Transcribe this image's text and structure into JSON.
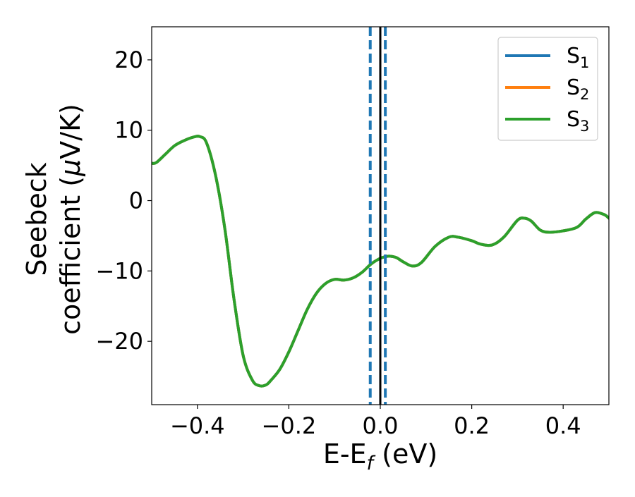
{
  "chart_data": {
    "type": "line",
    "xlabel": "E-E",
    "xlabel_sub": "f",
    "xlabel_unit": " (eV)",
    "ylabel_line1": "Seebeck",
    "ylabel_line2": "coefficient  (",
    "ylabel_mu": "μ",
    "ylabel_unit": "V/K)",
    "xlim": [
      -0.5,
      0.5
    ],
    "ylim": [
      -29,
      24.7
    ],
    "xticks": [
      -0.4,
      -0.2,
      0.0,
      0.2,
      0.4
    ],
    "xtick_labels": [
      "−0.4",
      "−0.2",
      "0.0",
      "0.2",
      "0.4"
    ],
    "yticks": [
      -20,
      -10,
      0,
      10,
      20
    ],
    "ytick_labels": [
      "−20",
      "−10",
      "0",
      "10",
      "20"
    ],
    "grid": false,
    "legend_position": "top-right",
    "colors": {
      "S1": "#1f77b4",
      "S2": "#ff7f0e",
      "S3": "#2ca02c",
      "fermi": "#000000"
    },
    "series": [
      {
        "name": "S",
        "sub": "1",
        "key": "S1",
        "x": [
          -0.5,
          -0.49,
          -0.47,
          -0.45,
          -0.43,
          -0.41,
          -0.395,
          -0.38,
          -0.36,
          -0.34,
          -0.32,
          -0.3,
          -0.28,
          -0.265,
          -0.25,
          -0.24,
          -0.22,
          -0.2,
          -0.18,
          -0.16,
          -0.14,
          -0.12,
          -0.1,
          -0.08,
          -0.06,
          -0.04,
          -0.02,
          0.0,
          0.01,
          0.02,
          0.035,
          0.05,
          0.07,
          0.09,
          0.12,
          0.15,
          0.17,
          0.2,
          0.22,
          0.245,
          0.27,
          0.3,
          0.315,
          0.33,
          0.35,
          0.37,
          0.4,
          0.43,
          0.45,
          0.47,
          0.49,
          0.5
        ],
        "y": [
          5.3,
          5.4,
          6.6,
          7.8,
          8.5,
          9.0,
          9.1,
          8.2,
          3.5,
          -4.0,
          -14.0,
          -22.0,
          -25.5,
          -26.3,
          -26.2,
          -25.6,
          -24.0,
          -21.5,
          -18.5,
          -15.5,
          -13.2,
          -11.8,
          -11.2,
          -11.3,
          -11.0,
          -10.2,
          -9.0,
          -8.2,
          -8.0,
          -7.9,
          -8.1,
          -8.7,
          -9.3,
          -8.8,
          -6.5,
          -5.2,
          -5.2,
          -5.7,
          -6.2,
          -6.3,
          -5.2,
          -2.8,
          -2.5,
          -2.9,
          -4.2,
          -4.5,
          -4.3,
          -3.8,
          -2.6,
          -1.7,
          -2.0,
          -2.5
        ]
      },
      {
        "name": "S",
        "sub": "2",
        "key": "S2",
        "x": [
          -0.5,
          -0.49,
          -0.47,
          -0.45,
          -0.43,
          -0.41,
          -0.395,
          -0.38,
          -0.36,
          -0.34,
          -0.32,
          -0.3,
          -0.28,
          -0.265,
          -0.25,
          -0.24,
          -0.22,
          -0.2,
          -0.18,
          -0.16,
          -0.14,
          -0.12,
          -0.1,
          -0.08,
          -0.06,
          -0.04,
          -0.02,
          0.0,
          0.01,
          0.02,
          0.035,
          0.05,
          0.07,
          0.09,
          0.12,
          0.15,
          0.17,
          0.2,
          0.22,
          0.245,
          0.27,
          0.3,
          0.315,
          0.33,
          0.35,
          0.37,
          0.4,
          0.43,
          0.45,
          0.47,
          0.49,
          0.5
        ],
        "y": [
          5.3,
          5.4,
          6.6,
          7.8,
          8.5,
          9.0,
          9.1,
          8.2,
          3.5,
          -4.0,
          -14.0,
          -22.0,
          -25.5,
          -26.3,
          -26.2,
          -25.6,
          -24.0,
          -21.5,
          -18.5,
          -15.5,
          -13.2,
          -11.8,
          -11.2,
          -11.3,
          -11.0,
          -10.2,
          -9.0,
          -8.2,
          -8.0,
          -7.9,
          -8.1,
          -8.7,
          -9.3,
          -8.8,
          -6.5,
          -5.2,
          -5.2,
          -5.7,
          -6.2,
          -6.3,
          -5.2,
          -2.8,
          -2.5,
          -2.9,
          -4.2,
          -4.5,
          -4.3,
          -3.8,
          -2.6,
          -1.7,
          -2.0,
          -2.5
        ]
      },
      {
        "name": "S",
        "sub": "3",
        "key": "S3",
        "x": [
          -0.5,
          -0.49,
          -0.47,
          -0.45,
          -0.43,
          -0.41,
          -0.395,
          -0.38,
          -0.36,
          -0.34,
          -0.32,
          -0.3,
          -0.28,
          -0.265,
          -0.25,
          -0.24,
          -0.22,
          -0.2,
          -0.18,
          -0.16,
          -0.14,
          -0.12,
          -0.1,
          -0.08,
          -0.06,
          -0.04,
          -0.02,
          0.0,
          0.01,
          0.02,
          0.035,
          0.05,
          0.07,
          0.09,
          0.12,
          0.15,
          0.17,
          0.2,
          0.22,
          0.245,
          0.27,
          0.3,
          0.315,
          0.33,
          0.35,
          0.37,
          0.4,
          0.43,
          0.45,
          0.47,
          0.49,
          0.5
        ],
        "y": [
          5.3,
          5.4,
          6.6,
          7.8,
          8.5,
          9.0,
          9.1,
          8.2,
          3.5,
          -4.0,
          -14.0,
          -22.0,
          -25.5,
          -26.3,
          -26.2,
          -25.6,
          -24.0,
          -21.5,
          -18.5,
          -15.5,
          -13.2,
          -11.8,
          -11.2,
          -11.3,
          -11.0,
          -10.2,
          -9.0,
          -8.2,
          -8.0,
          -7.9,
          -8.1,
          -8.7,
          -9.3,
          -8.8,
          -6.5,
          -5.2,
          -5.2,
          -5.7,
          -6.2,
          -6.3,
          -5.2,
          -2.8,
          -2.5,
          -2.9,
          -4.2,
          -4.5,
          -4.3,
          -3.8,
          -2.6,
          -1.7,
          -2.0,
          -2.5
        ]
      }
    ],
    "vlines": [
      {
        "x": -0.022,
        "style": "dashed",
        "key": "S1"
      },
      {
        "x": 0.011,
        "style": "dashed",
        "key": "S1"
      },
      {
        "x": 0.0,
        "style": "solid",
        "key": "fermi"
      }
    ]
  }
}
